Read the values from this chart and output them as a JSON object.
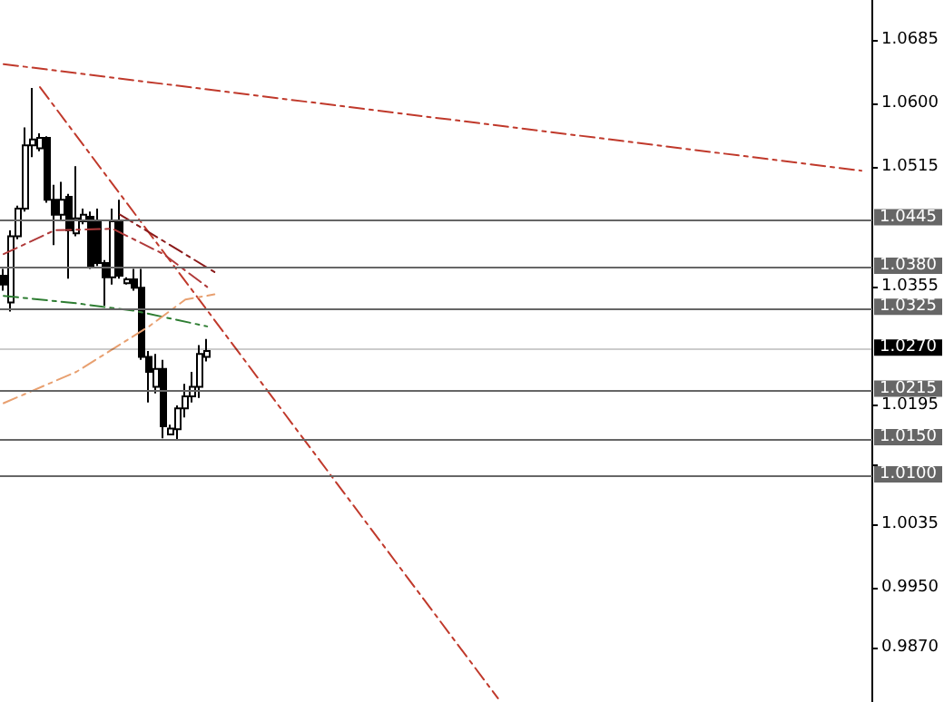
{
  "chart_data": {
    "type": "candlestick",
    "categories": [
      null,
      null,
      null,
      null,
      null,
      null,
      null,
      null,
      null,
      null,
      null,
      null,
      null,
      null,
      null,
      null,
      null,
      null,
      null,
      null,
      null,
      null,
      null,
      null,
      null,
      null,
      null,
      null,
      null,
      null,
      null,
      null,
      null,
      null,
      null,
      null,
      null,
      null,
      null,
      null,
      null,
      null,
      null,
      null,
      null,
      null,
      null,
      null,
      null,
      null,
      null,
      null,
      null,
      null,
      null,
      null,
      null,
      null,
      null,
      null,
      null,
      null,
      null,
      null,
      null,
      null,
      null,
      null,
      null,
      null,
      null,
      null,
      null,
      null,
      null,
      null,
      null,
      null,
      null,
      null,
      null,
      null,
      null,
      null,
      null,
      null,
      null,
      null,
      null,
      null,
      null,
      null,
      null,
      null,
      null,
      null,
      null,
      null,
      null,
      null,
      null,
      null,
      null,
      null,
      null,
      null,
      null,
      null,
      null,
      null,
      null,
      null,
      null,
      null,
      null,
      null,
      null,
      null,
      null,
      null
    ],
    "ylim": [
      0.9797,
      1.0739
    ],
    "yticks": [
      1.0685,
      {
        "value": 1.06,
        "label": "1.0600"
      },
      1.0515,
      1.0355,
      1.0195,
      {
        "value": 1.0115,
        "label": null
      },
      1.0035,
      {
        "value": 0.995,
        "label": "0.9950"
      },
      {
        "value": 0.987,
        "label": "0.9870"
      }
    ],
    "tick_labels": "y",
    "grid": false,
    "legend": false,
    "series": [
      {
        "type": "candlestick",
        "color": "#000000",
        "ohlc": [
          [
            1.0369,
            1.0378,
            1.0349,
            1.0357
          ],
          [
            1.0333,
            1.043,
            1.0321,
            1.0422
          ],
          [
            1.0422,
            1.0463,
            1.0418,
            1.0459
          ],
          [
            1.0459,
            1.0568,
            1.0455,
            1.0544
          ],
          [
            1.0544,
            1.0621,
            1.0528,
            1.0552
          ],
          [
            1.054,
            1.056,
            1.0536,
            1.0554
          ],
          [
            1.0554,
            1.0556,
            1.0467,
            1.0471
          ],
          [
            1.0471,
            1.0491,
            1.041,
            1.0451
          ],
          [
            1.0451,
            1.0495,
            1.0442,
            1.0471
          ],
          [
            1.0475,
            1.0479,
            1.0365,
            1.043
          ],
          [
            1.0426,
            1.0516,
            1.0422,
            1.0446
          ],
          [
            1.0442,
            1.0459,
            1.0438,
            1.0451
          ],
          [
            1.0448,
            1.0455,
            1.0378,
            1.0382
          ],
          [
            1.0442,
            1.0459,
            1.0382,
            1.0386
          ],
          [
            1.0386,
            1.039,
            1.0329,
            1.0367
          ],
          [
            1.0367,
            1.0459,
            1.0357,
            1.0442
          ],
          [
            1.0442,
            1.0471,
            1.0365,
            1.0369
          ],
          [
            1.0359,
            1.0367,
            1.0357,
            1.0364
          ],
          [
            1.0364,
            1.0378,
            1.0349,
            1.0353
          ],
          [
            1.0353,
            1.0378,
            1.0256,
            1.026
          ],
          [
            1.026,
            1.0268,
            1.0199,
            1.024
          ],
          [
            1.022,
            1.0264,
            1.0211,
            1.0244
          ],
          [
            1.0244,
            1.0256,
            1.0151,
            1.0167
          ],
          [
            1.0156,
            1.0169,
            1.0155,
            1.0164
          ],
          [
            1.0163,
            1.0195,
            1.0148,
            1.0191
          ],
          [
            1.0191,
            1.0224,
            1.0179,
            1.0207
          ],
          [
            1.0207,
            1.024,
            1.0199,
            1.022
          ],
          [
            1.022,
            1.0276,
            1.0205,
            1.0264
          ],
          [
            1.026,
            1.0284,
            1.0254,
            1.0268
          ],
          null,
          null,
          null,
          null,
          null,
          null,
          null,
          null,
          null,
          null,
          null,
          null,
          null,
          null,
          null,
          null,
          null,
          null,
          null,
          null,
          null,
          null,
          null,
          null,
          null,
          null,
          null,
          null,
          null,
          null,
          null,
          null,
          null,
          null,
          null,
          null,
          null,
          null,
          null,
          null,
          null,
          null,
          null,
          null,
          null,
          null,
          null,
          null,
          null,
          null,
          null,
          null,
          null,
          null,
          null,
          null,
          null,
          null,
          null,
          null,
          null,
          null,
          null,
          null,
          null,
          null,
          null,
          null,
          null,
          null,
          null,
          null,
          null,
          null,
          null,
          null,
          null,
          null,
          null,
          null,
          null,
          null,
          null,
          null,
          null,
          null,
          null,
          null,
          null,
          null,
          null
        ]
      },
      {
        "type": "line",
        "color": "#c0392b",
        "line_style": "dashed",
        "values": [
          1.0653,
          null,
          null,
          null,
          null,
          null,
          null,
          null,
          null,
          null,
          null,
          null,
          null,
          null,
          null,
          null,
          null,
          null,
          null,
          null,
          null,
          null,
          null,
          null,
          null,
          null,
          null,
          null,
          null,
          null,
          null,
          null,
          null,
          null,
          null,
          null,
          null,
          null,
          null,
          null,
          null,
          null,
          null,
          null,
          null,
          null,
          null,
          null,
          null,
          null,
          null,
          null,
          null,
          null,
          null,
          null,
          null,
          null,
          null,
          null,
          null,
          null,
          null,
          null,
          null,
          null,
          null,
          null,
          null,
          null,
          null,
          null,
          null,
          null,
          null,
          null,
          null,
          null,
          null,
          null,
          null,
          null,
          null,
          null,
          null,
          null,
          null,
          null,
          null,
          null,
          null,
          null,
          null,
          null,
          null,
          null,
          null,
          null,
          null,
          null,
          null,
          null,
          null,
          null,
          null,
          null,
          null,
          null,
          null,
          null,
          null,
          null,
          null,
          null,
          null,
          null,
          null,
          null,
          1.051,
          null
        ]
      },
      {
        "type": "line",
        "color": "#c0392b",
        "line_style": "dashed",
        "values": [
          null,
          null,
          null,
          null,
          null,
          1.0622,
          null,
          null,
          null,
          null,
          null,
          null,
          null,
          null,
          null,
          null,
          null,
          null,
          null,
          null,
          null,
          null,
          null,
          null,
          null,
          null,
          null,
          null,
          null,
          null,
          null,
          null,
          null,
          null,
          null,
          null,
          null,
          null,
          null,
          null,
          null,
          null,
          null,
          null,
          null,
          null,
          null,
          null,
          null,
          null,
          null,
          null,
          null,
          null,
          null,
          null,
          null,
          null,
          null,
          null,
          null,
          null,
          null,
          null,
          null,
          null,
          null,
          null,
          0.9802,
          null,
          null,
          null,
          null,
          null,
          null,
          null,
          null,
          null,
          null,
          null,
          null,
          null,
          null,
          null,
          null,
          null,
          null,
          null,
          null,
          null,
          null,
          null,
          null,
          null,
          null,
          null,
          null,
          null,
          null,
          null,
          null,
          null,
          null,
          null,
          null,
          null,
          null,
          null,
          null,
          null,
          null,
          null,
          null,
          null,
          null,
          null,
          null,
          null,
          null,
          null
        ]
      },
      {
        "type": "line",
        "color": "#8b1a1a",
        "line_style": "dashed",
        "values": [
          null,
          null,
          null,
          null,
          null,
          null,
          null,
          null,
          null,
          null,
          null,
          null,
          null,
          null,
          null,
          null,
          1.0451,
          null,
          null,
          null,
          null,
          null,
          null,
          null,
          null,
          null,
          null,
          null,
          null,
          1.0374,
          null,
          null,
          null,
          null,
          null,
          null,
          null,
          null,
          null,
          null,
          null,
          null,
          null,
          null,
          null,
          null,
          null,
          null,
          null,
          null,
          null,
          null,
          null,
          null,
          null,
          null,
          null,
          null,
          null,
          null,
          null,
          null,
          null,
          null,
          null,
          null,
          null,
          null,
          null,
          null,
          null,
          null,
          null,
          null,
          null,
          null,
          null,
          null,
          null,
          null,
          null,
          null,
          null,
          null,
          null,
          null,
          null,
          null,
          null,
          null,
          null,
          null,
          null,
          null,
          null,
          null,
          null,
          null,
          null,
          null,
          null,
          null,
          null,
          null,
          null,
          null,
          null,
          null,
          null,
          null,
          null,
          null,
          null,
          null,
          null,
          null,
          null,
          null,
          null,
          null
        ]
      },
      {
        "type": "line",
        "color": "#2e7d32",
        "line_style": "dashed",
        "values": [
          1.0342,
          null,
          null,
          null,
          null,
          null,
          null,
          null,
          null,
          null,
          1.0332,
          null,
          null,
          null,
          null,
          null,
          null,
          null,
          1.0322,
          null,
          null,
          null,
          null,
          null,
          null,
          null,
          null,
          null,
          1.0301,
          null,
          null,
          null,
          null,
          null,
          null,
          null,
          null,
          null,
          null,
          null,
          null,
          null,
          null,
          null,
          null,
          null,
          null,
          null,
          null,
          null,
          null,
          null,
          null,
          null,
          null,
          null,
          null,
          null,
          null,
          null,
          null,
          null,
          null,
          null,
          null,
          null,
          null,
          null,
          null,
          null,
          null,
          null,
          null,
          null,
          null,
          null,
          null,
          null,
          null,
          null,
          null,
          null,
          null,
          null,
          null,
          null,
          null,
          null,
          null,
          null,
          null,
          null,
          null,
          null,
          null,
          null,
          null,
          null,
          null,
          null,
          null,
          null,
          null,
          null,
          null,
          null,
          null,
          null,
          null,
          null,
          null,
          null,
          null,
          null,
          null,
          null,
          null,
          null,
          null,
          null
        ]
      },
      {
        "type": "line",
        "color": "#e8a070",
        "line_style": "dashed",
        "values": [
          1.0198,
          null,
          null,
          null,
          null,
          null,
          null,
          null,
          null,
          null,
          1.024,
          null,
          null,
          null,
          null,
          null,
          null,
          null,
          null,
          null,
          1.0301,
          null,
          null,
          null,
          null,
          1.0337,
          null,
          null,
          null,
          1.0344,
          null,
          null,
          null,
          null,
          null,
          null,
          null,
          null,
          null,
          null,
          null,
          null,
          null,
          null,
          null,
          null,
          null,
          null,
          null,
          null,
          null,
          null,
          null,
          null,
          null,
          null,
          null,
          null,
          null,
          null,
          null,
          null,
          null,
          null,
          null,
          null,
          null,
          null,
          null,
          null,
          null,
          null,
          null,
          null,
          null,
          null,
          null,
          null,
          null,
          null,
          null,
          null,
          null,
          null,
          null,
          null,
          null,
          null,
          null,
          null,
          null,
          null,
          null,
          null,
          null,
          null,
          null,
          null,
          null,
          null,
          null,
          null,
          null,
          null,
          null,
          null,
          null,
          null,
          null,
          null,
          null,
          null,
          null,
          null,
          null,
          null,
          null,
          null,
          null,
          null
        ]
      },
      {
        "type": "line",
        "color": "#b03a3a",
        "line_style": "dashed",
        "values": [
          1.0398,
          null,
          null,
          null,
          null,
          null,
          null,
          1.043,
          null,
          null,
          null,
          null,
          null,
          null,
          null,
          1.0432,
          null,
          null,
          null,
          null,
          null,
          null,
          1.0398,
          null,
          null,
          null,
          null,
          null,
          1.0354,
          null,
          null,
          null,
          null,
          null,
          null,
          null,
          null,
          null,
          null,
          null,
          null,
          null,
          null,
          null,
          null,
          null,
          null,
          null,
          null,
          null,
          null,
          null,
          null,
          null,
          null,
          null,
          null,
          null,
          null,
          null,
          null,
          null,
          null,
          null,
          null,
          null,
          null,
          null,
          null,
          null,
          null,
          null,
          null,
          null,
          null,
          null,
          null,
          null,
          null,
          null,
          null,
          null,
          null,
          null,
          null,
          null,
          null,
          null,
          null,
          null,
          null,
          null,
          null,
          null,
          null,
          null,
          null,
          null,
          null,
          null,
          null,
          null,
          null,
          null,
          null,
          null,
          null,
          null,
          null,
          null,
          null,
          null,
          null,
          null,
          null,
          null,
          null,
          null,
          null,
          null
        ]
      }
    ],
    "ref_lines": [
      {
        "axis": "y",
        "value": 1.0445,
        "label": "1.0445",
        "color": "#666666"
      },
      {
        "axis": "y",
        "value": 1.038,
        "label": "1.0380",
        "color": "#666666"
      },
      {
        "axis": "y",
        "value": 1.0325,
        "label": "1.0325",
        "color": "#666666"
      },
      {
        "axis": "y",
        "value": 1.027,
        "label": "1.0270",
        "color": "#000000"
      },
      {
        "axis": "y",
        "value": 1.0215,
        "label": "1.0215",
        "color": "#666666"
      },
      {
        "axis": "y",
        "value": 1.015,
        "label": "1.0150",
        "color": "#666666"
      },
      {
        "axis": "y",
        "value": 1.01,
        "label": "1.0100",
        "color": "#666666"
      }
    ]
  }
}
